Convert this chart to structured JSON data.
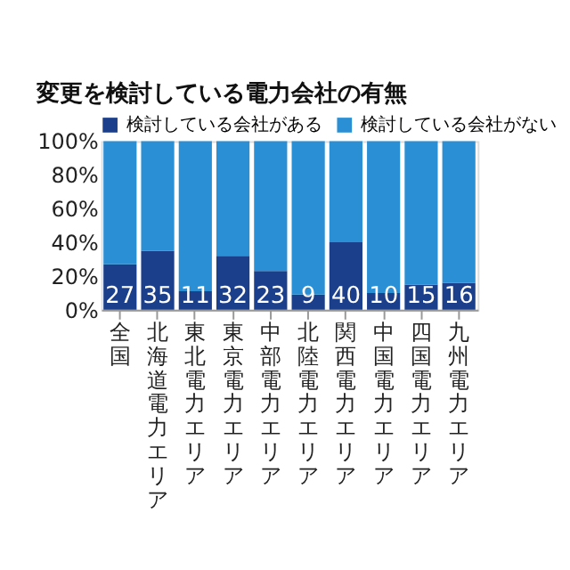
{
  "chart_data": {
    "type": "bar",
    "stacked": true,
    "title": "変更を検討している電力会社の有無",
    "categories": [
      "全国",
      "北海道電力エリア",
      "東北電力エリア",
      "東京電力エリア",
      "中部電力エリア",
      "北陸電力エリア",
      "関西電力エリア",
      "中国電力エリア",
      "四国電力エリア",
      "九州電力エリア"
    ],
    "series": [
      {
        "name": "検討している会社がある",
        "color": "#1c3f8c",
        "values": [
          27,
          35,
          11,
          32,
          23,
          9,
          40,
          10,
          15,
          16
        ],
        "value_labels": [
          "27",
          "35",
          "11",
          "32",
          "23",
          "9",
          "40",
          "10",
          "15",
          "16"
        ]
      },
      {
        "name": "検討している会社がない",
        "color": "#2a8fd4",
        "values": [
          73,
          65,
          89,
          68,
          77,
          91,
          60,
          90,
          85,
          84
        ]
      }
    ],
    "ylim": [
      0,
      100
    ],
    "yticks": [
      {
        "value": 0,
        "label": "0%"
      },
      {
        "value": 20,
        "label": "20%"
      },
      {
        "value": 40,
        "label": "40%"
      },
      {
        "value": 60,
        "label": "60%"
      },
      {
        "value": 80,
        "label": "80%"
      },
      {
        "value": 100,
        "label": "100%"
      }
    ],
    "grid": false,
    "legend": "top"
  }
}
